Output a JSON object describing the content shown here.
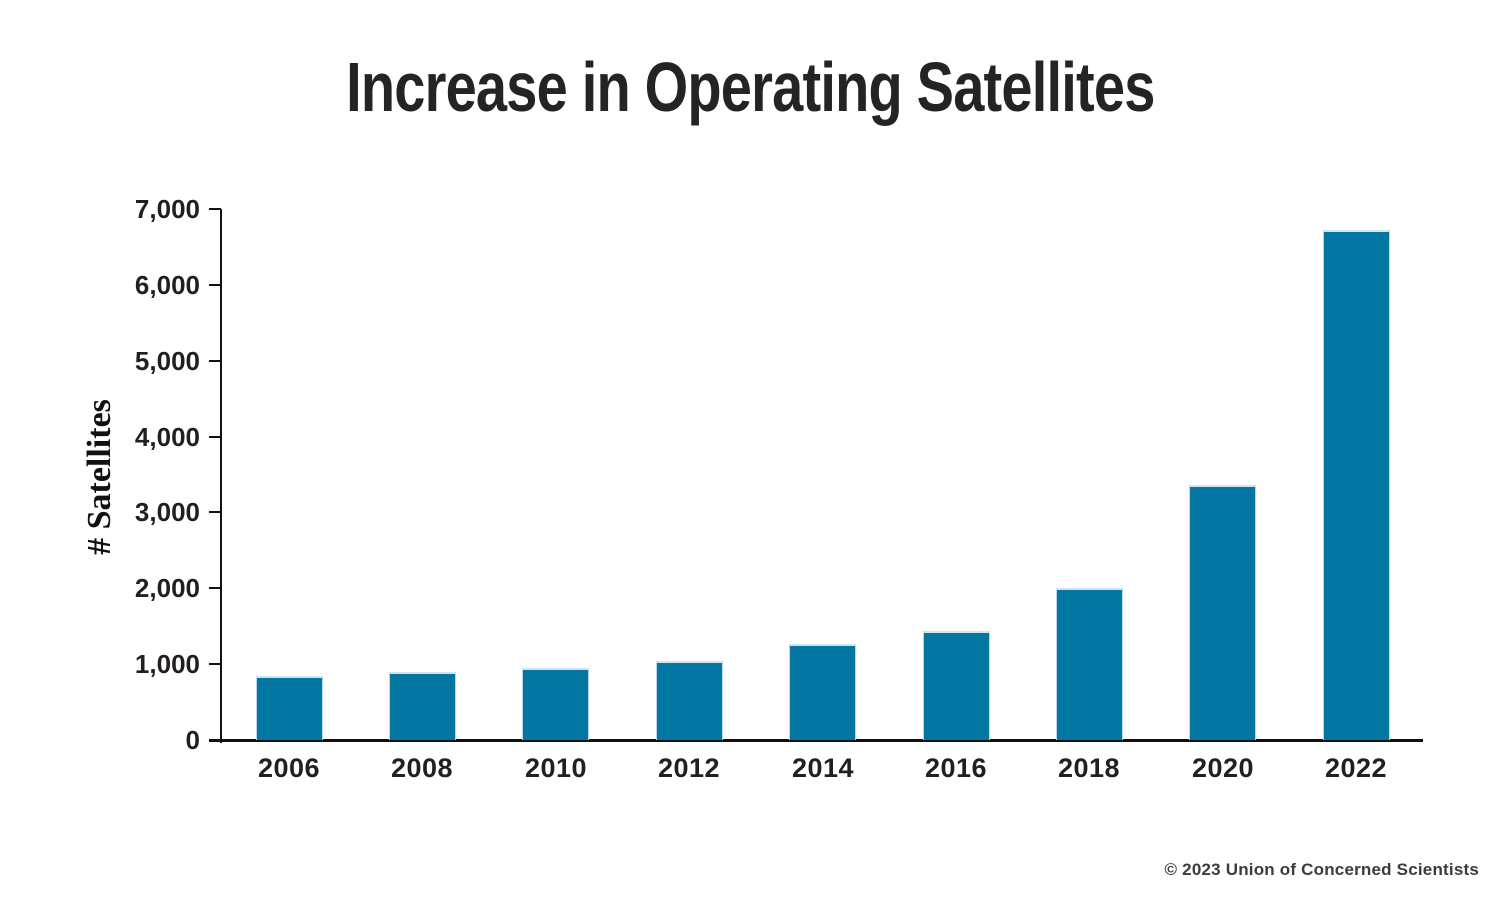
{
  "title": "Increase in Operating Satellites",
  "footer": {
    "copyright": "© 2023 Union of Concerned Scientists"
  },
  "colors": {
    "bar_fill": "#0377a1",
    "bar_edge_light": "#bcd8e6",
    "text": "#231f20",
    "axis": "#111111",
    "copyright_text": "#3c3c3c"
  },
  "chart_data": {
    "type": "bar",
    "title": "Increase in Operating Satellites",
    "categories": [
      "2006",
      "2008",
      "2010",
      "2012",
      "2014",
      "2016",
      "2018",
      "2020",
      "2022"
    ],
    "values": [
      850,
      900,
      950,
      1035,
      1265,
      1435,
      2010,
      3360,
      6720
    ],
    "xlabel": "",
    "ylabel": "# Satellites",
    "ylim": [
      0,
      7000
    ],
    "ytick_step": 1000,
    "ytick_labels": [
      "0",
      "1,000",
      "2,000",
      "3,000",
      "4,000",
      "5,000",
      "6,000",
      "7,000"
    ],
    "grid": false,
    "legend": false,
    "bar_color": "#0377a1"
  }
}
